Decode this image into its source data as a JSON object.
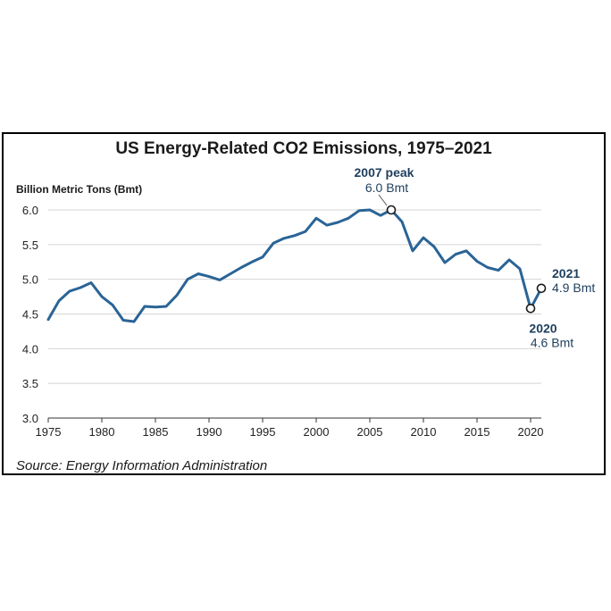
{
  "chart_data": {
    "type": "line",
    "title": "US Energy-Related CO2 Emissions, 1975–2021",
    "ylabel": "Billion Metric Tons (Bmt)",
    "xlabel": "",
    "xlim": [
      1975,
      2021
    ],
    "ylim": [
      3.0,
      6.0
    ],
    "x_ticks": [
      "1975",
      "1980",
      "1985",
      "1990",
      "1995",
      "2000",
      "2005",
      "2010",
      "2015",
      "2020"
    ],
    "y_ticks": [
      "3.0",
      "3.5",
      "4.0",
      "4.5",
      "5.0",
      "5.5",
      "6.0"
    ],
    "grid": "horizontal",
    "line_color": "#2a6496",
    "x": [
      1975,
      1976,
      1977,
      1978,
      1979,
      1980,
      1981,
      1982,
      1983,
      1984,
      1985,
      1986,
      1987,
      1988,
      1989,
      1990,
      1991,
      1992,
      1993,
      1994,
      1995,
      1996,
      1997,
      1998,
      1999,
      2000,
      2001,
      2002,
      2003,
      2004,
      2005,
      2006,
      2007,
      2008,
      2009,
      2010,
      2011,
      2012,
      2013,
      2014,
      2015,
      2016,
      2017,
      2018,
      2019,
      2020,
      2021
    ],
    "values": [
      4.42,
      4.69,
      4.83,
      4.88,
      4.95,
      4.75,
      4.63,
      4.41,
      4.39,
      4.61,
      4.6,
      4.61,
      4.77,
      5.0,
      5.08,
      5.04,
      4.99,
      5.08,
      5.17,
      5.25,
      5.32,
      5.52,
      5.59,
      5.63,
      5.69,
      5.88,
      5.78,
      5.82,
      5.88,
      5.99,
      6.0,
      5.92,
      6.0,
      5.83,
      5.41,
      5.6,
      5.47,
      5.24,
      5.36,
      5.41,
      5.26,
      5.17,
      5.13,
      5.28,
      5.15,
      4.58,
      4.87
    ],
    "annotations": [
      {
        "year": 2007,
        "value": 6.0,
        "label": "2007 peak",
        "sublabel": "6.0 Bmt"
      },
      {
        "year": 2020,
        "value": 4.58,
        "label": "2020",
        "sublabel": "4.6 Bmt"
      },
      {
        "year": 2021,
        "value": 4.87,
        "label": "2021",
        "sublabel": "4.9 Bmt"
      }
    ],
    "source": "Source: Energy Information Administration"
  }
}
